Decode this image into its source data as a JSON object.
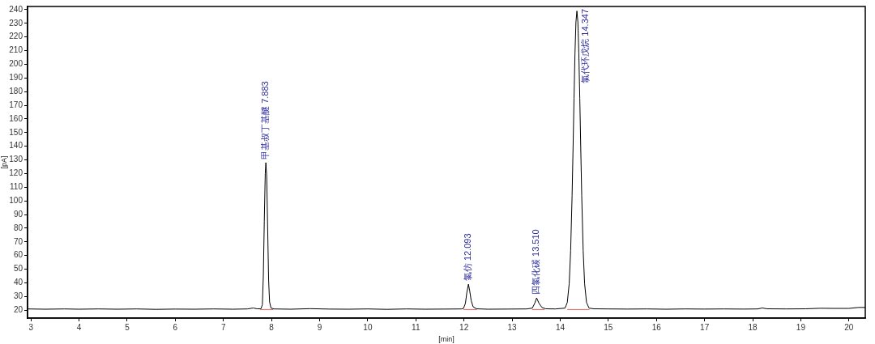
{
  "chart_data": {
    "type": "line",
    "xlabel": "[min]",
    "ylabel": "[pA]",
    "xlim": [
      2.93,
      20.34
    ],
    "ylim": [
      14.2,
      242.3
    ],
    "xticks": [
      3,
      4,
      5,
      6,
      7,
      8,
      9,
      10,
      11,
      12,
      13,
      14,
      15,
      16,
      17,
      18,
      19,
      20
    ],
    "yticks": [
      20,
      30,
      40,
      50,
      60,
      70,
      80,
      90,
      100,
      110,
      120,
      130,
      140,
      150,
      160,
      170,
      180,
      190,
      200,
      210,
      220,
      230,
      240
    ],
    "marker": "none",
    "line_style": "solid",
    "series": [
      {
        "color": "#000000",
        "x": [
          2.93,
          3.3,
          3.7,
          4.0,
          4.4,
          4.8,
          5.2,
          5.6,
          6.0,
          6.4,
          6.8,
          7.2,
          7.5,
          7.62,
          7.7,
          7.78,
          7.81,
          7.83,
          7.85,
          7.87,
          7.883,
          7.9,
          7.92,
          7.94,
          7.96,
          7.99,
          8.05,
          8.4,
          8.8,
          9.2,
          9.6,
          10.0,
          10.4,
          10.8,
          11.2,
          11.6,
          11.95,
          11.99,
          12.03,
          12.06,
          12.093,
          12.12,
          12.15,
          12.19,
          12.26,
          12.5,
          12.9,
          13.3,
          13.42,
          13.47,
          13.51,
          13.56,
          13.62,
          13.7,
          13.9,
          14.1,
          14.147,
          14.187,
          14.217,
          14.247,
          14.267,
          14.287,
          14.307,
          14.327,
          14.347,
          14.367,
          14.387,
          14.407,
          14.427,
          14.447,
          14.477,
          14.507,
          14.547,
          14.6,
          14.7,
          15.0,
          15.4,
          15.8,
          16.2,
          16.6,
          17.0,
          17.4,
          17.8,
          18.1,
          18.2,
          18.3,
          18.7,
          19.1,
          19.4,
          19.7,
          20.0,
          20.2,
          20.34
        ],
        "values": [
          20.9,
          20.7,
          20.9,
          20.7,
          20.9,
          20.7,
          20.9,
          20.6,
          20.8,
          20.7,
          20.9,
          20.7,
          20.9,
          21.6,
          21.0,
          21.0,
          24,
          45,
          85,
          120,
          128,
          118,
          80,
          42,
          26,
          21.5,
          20.9,
          20.7,
          21.1,
          20.8,
          20.7,
          20.9,
          20.6,
          20.9,
          20.7,
          20.8,
          20.9,
          21.3,
          25,
          33,
          39,
          34,
          27,
          22.5,
          21.0,
          20.7,
          20.8,
          20.9,
          21.5,
          25,
          29,
          25,
          22,
          21.0,
          20.9,
          21.5,
          25.6,
          39.5,
          63.7,
          104,
          138.6,
          175,
          208,
          231,
          239,
          231,
          208,
          175,
          138.6,
          104,
          63.7,
          39.5,
          25.6,
          21.5,
          21.0,
          20.9,
          20.8,
          20.9,
          20.7,
          20.9,
          20.8,
          20.9,
          20.8,
          20.9,
          21.6,
          21.0,
          20.9,
          21.0,
          21.4,
          21.3,
          21.3,
          22.0,
          22.0
        ]
      },
      {
        "color": "#e06060",
        "x": [
          7.77,
          8.03,
          10.0,
          11.99,
          12.26,
          13.0,
          13.42,
          13.67,
          14.0,
          14.15,
          14.6
        ],
        "values": [
          20.5,
          20.5,
          null,
          20.5,
          20.5,
          null,
          20.5,
          20.5,
          null,
          20.5,
          20.5
        ]
      }
    ],
    "annotations": [
      {
        "text": "甲基叔丁基醚 7.883",
        "x": 7.883,
        "y": 128
      },
      {
        "text": "氯仿 12.093",
        "x": 12.093,
        "y": 39
      },
      {
        "text": "四氯化碳 13.510",
        "x": 13.51,
        "y": 29
      },
      {
        "text": "氯代环戊烷 14.347",
        "x": 14.347,
        "y": 239
      }
    ]
  }
}
